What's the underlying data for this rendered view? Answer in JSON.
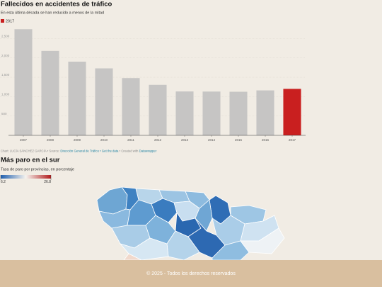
{
  "chart_data": [
    {
      "type": "bar",
      "title": "Fallecidos en accidentes de tráfico",
      "subtitle": "En esta última década se han reducido a menos de la mitad",
      "legend": [
        {
          "label": "2017",
          "color": "#c91f1f"
        }
      ],
      "categories": [
        "2007",
        "2008",
        "2009",
        "2010",
        "2011",
        "2012",
        "2013",
        "2014",
        "2015",
        "2016",
        "2017"
      ],
      "values": [
        2741,
        2181,
        1903,
        1730,
        1479,
        1304,
        1134,
        1131,
        1126,
        1161,
        1200
      ],
      "colors": [
        "#c6c5c4",
        "#c6c5c4",
        "#c6c5c4",
        "#c6c5c4",
        "#c6c5c4",
        "#c6c5c4",
        "#c6c5c4",
        "#c6c5c4",
        "#c6c5c4",
        "#c6c5c4",
        "#c91f1f"
      ],
      "ylim": [
        0,
        2800
      ],
      "yticks": [
        500,
        {
          "value": 1000,
          "label": "1,000"
        },
        {
          "value": 1500,
          "label": "1,500"
        },
        {
          "value": 2000,
          "label": "2,000"
        },
        {
          "value": 2500,
          "label": "2,500"
        }
      ],
      "grid": true,
      "credit": {
        "chart": "Chart: LUCÍA SÁNCHEZ GARCÍA",
        "source_label": "• Source:",
        "source": "Dirección General de Tráfico",
        "get_data": "• Get the data",
        "created": "• Created with",
        "tool": "Datawrapper"
      }
    },
    {
      "type": "choropleth",
      "title": "Más paro en el sur",
      "subtitle": "Tasa de paro por provincias, en porcentaje",
      "scale": {
        "min": 6.2,
        "max": 26.8,
        "colors": [
          "#1f5fae",
          "#f5f2ee",
          "#b21d1d"
        ]
      }
    }
  ],
  "footer": {
    "text": "© 2025 - Todos los derechos reservados"
  }
}
